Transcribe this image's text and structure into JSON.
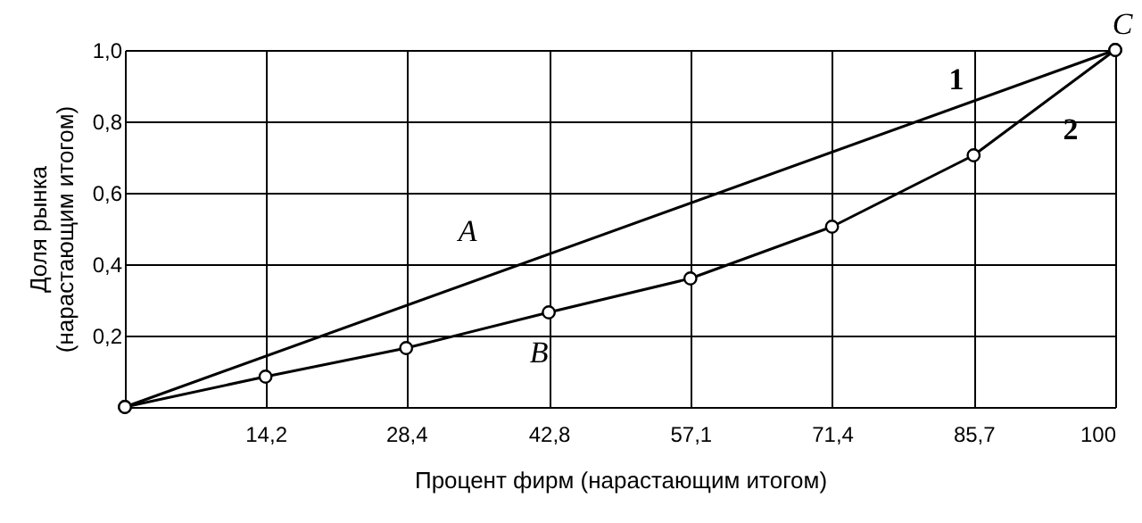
{
  "chart_data": {
    "type": "line",
    "xlabel": "Процент фирм (нарастающим итогом)",
    "ylabel": "Доля рынка\n(нарастающим итогом)",
    "xlim": [
      0,
      100
    ],
    "ylim": [
      0,
      1
    ],
    "xticks": [
      {
        "value": 14.2,
        "label": "14,2"
      },
      {
        "value": 28.4,
        "label": "28,4"
      },
      {
        "value": 42.8,
        "label": "42,8"
      },
      {
        "value": 57.1,
        "label": "57,1"
      },
      {
        "value": 71.4,
        "label": "71,4"
      },
      {
        "value": 85.7,
        "label": "85,7"
      },
      100
    ],
    "yticks": [
      {
        "value": 0.2,
        "label": "0,2"
      },
      {
        "value": 0.4,
        "label": "0,4"
      },
      {
        "value": 0.6,
        "label": "0,6"
      },
      {
        "value": 0.8,
        "label": "0,8"
      },
      {
        "value": 1.0,
        "label": "1,0"
      }
    ],
    "grid": true,
    "series": [
      {
        "name": "1",
        "color": "#000000",
        "marker": "circle",
        "x": [
          0,
          100
        ],
        "values": [
          0,
          1
        ]
      },
      {
        "name": "2",
        "color": "#000000",
        "marker": "circle",
        "x": [
          0,
          14.2,
          28.4,
          42.8,
          57.1,
          71.4,
          85.7,
          100
        ],
        "values": [
          0,
          0.085,
          0.165,
          0.265,
          0.36,
          0.505,
          0.705,
          1
        ]
      }
    ],
    "annotations": [
      "A",
      "B",
      {
        "text": "C",
        "x": 100,
        "y": 1
      }
    ]
  }
}
